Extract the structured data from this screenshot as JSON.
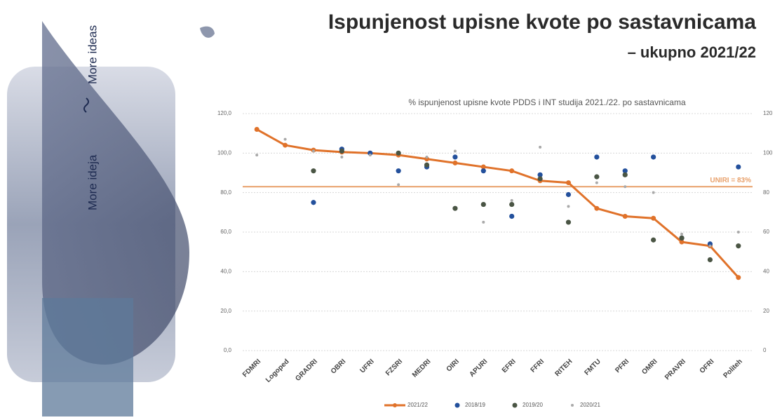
{
  "slide": {
    "title": "Ispunjenost upisne kvote po sastavnicama",
    "subtitle": "– ukupno 2021/22",
    "tagline_en": "More ideas",
    "tagline_hr": "More ideja"
  },
  "chart_data": {
    "type": "line",
    "title": "% ispunjenost upisne kvote PDDS i INT studija 2021./22. po sastavnicama",
    "categories": [
      "FDMRI",
      "Logoped",
      "GRADRI",
      "OBRI",
      "UFRI",
      "FZSRI",
      "MEDRI",
      "OIRI",
      "APURI",
      "EFRI",
      "FFRI",
      "RITEH",
      "FMTU",
      "PFRI",
      "OMRI",
      "PRAVRI",
      "OFRI",
      "Politeh"
    ],
    "series": [
      {
        "name": "2021/22",
        "color": "#e0722a",
        "style": "line",
        "values": [
          112,
          104,
          101.5,
          100.5,
          100,
          99,
          97,
          95,
          93,
          91,
          86,
          85,
          72,
          68,
          67,
          55,
          53,
          37
        ]
      },
      {
        "name": "2018/19",
        "color": "#23509c",
        "style": "dot",
        "values": [
          null,
          null,
          75,
          102,
          100,
          91,
          93,
          98,
          91,
          68,
          89,
          79,
          98,
          91,
          98,
          57,
          54,
          93
        ]
      },
      {
        "name": "2019/20",
        "color": "#4a5544",
        "style": "dot",
        "values": [
          null,
          null,
          91,
          101,
          null,
          100,
          94,
          72,
          74,
          74,
          87,
          65,
          88,
          89,
          56,
          57,
          46,
          53
        ]
      },
      {
        "name": "2020/21",
        "color": "#a9a9a9",
        "style": "small-dot",
        "values": [
          99,
          107,
          101,
          98,
          99,
          84,
          98,
          101,
          65,
          76,
          103,
          73,
          85,
          83,
          80,
          59,
          53,
          60
        ]
      }
    ],
    "reference_line": {
      "value": 83,
      "label": "UNIRI = 83%",
      "color": "#e8a06a"
    },
    "ylim": [
      0,
      120
    ],
    "yticks": [
      {
        "value": 0,
        "label": "0,0"
      },
      {
        "value": 20,
        "label": "20,0"
      },
      {
        "value": 40,
        "label": "40,0"
      },
      {
        "value": 60,
        "label": "60,0"
      },
      {
        "value": 80,
        "label": "80,0"
      },
      {
        "value": 100,
        "label": "100,0"
      },
      {
        "value": 120,
        "label": "120,0"
      }
    ],
    "y2lim": [
      0,
      120
    ],
    "y2ticks": [
      0,
      20,
      40,
      60,
      80,
      100,
      120
    ],
    "grid": true
  }
}
